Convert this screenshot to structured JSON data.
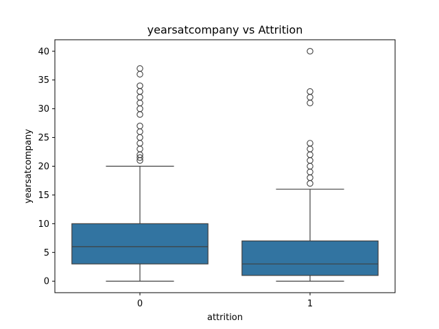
{
  "chart_data": {
    "type": "box",
    "title": "yearsatcompany vs Attrition",
    "xlabel": "attrition",
    "ylabel": "yearsatcompany",
    "categories": [
      "0",
      "1"
    ],
    "ylim": [
      -2,
      42
    ],
    "yticks": [
      0,
      5,
      10,
      15,
      20,
      25,
      30,
      35,
      40
    ],
    "grid": false,
    "box_color": "#3274a1",
    "line_color": "#3f3f3f",
    "boxes": [
      {
        "category": "0",
        "whisker_low": 0,
        "q1": 3,
        "median": 6,
        "q3": 10,
        "whisker_high": 20,
        "outliers": [
          21,
          21.5,
          22,
          23,
          24,
          25,
          26,
          27,
          29,
          30,
          31,
          32,
          33,
          34,
          36,
          37
        ]
      },
      {
        "category": "1",
        "whisker_low": 0,
        "q1": 1,
        "median": 3,
        "q3": 7,
        "whisker_high": 16,
        "outliers": [
          17,
          18,
          19,
          20,
          21,
          22,
          23,
          24,
          31,
          32,
          33,
          40
        ]
      }
    ]
  }
}
